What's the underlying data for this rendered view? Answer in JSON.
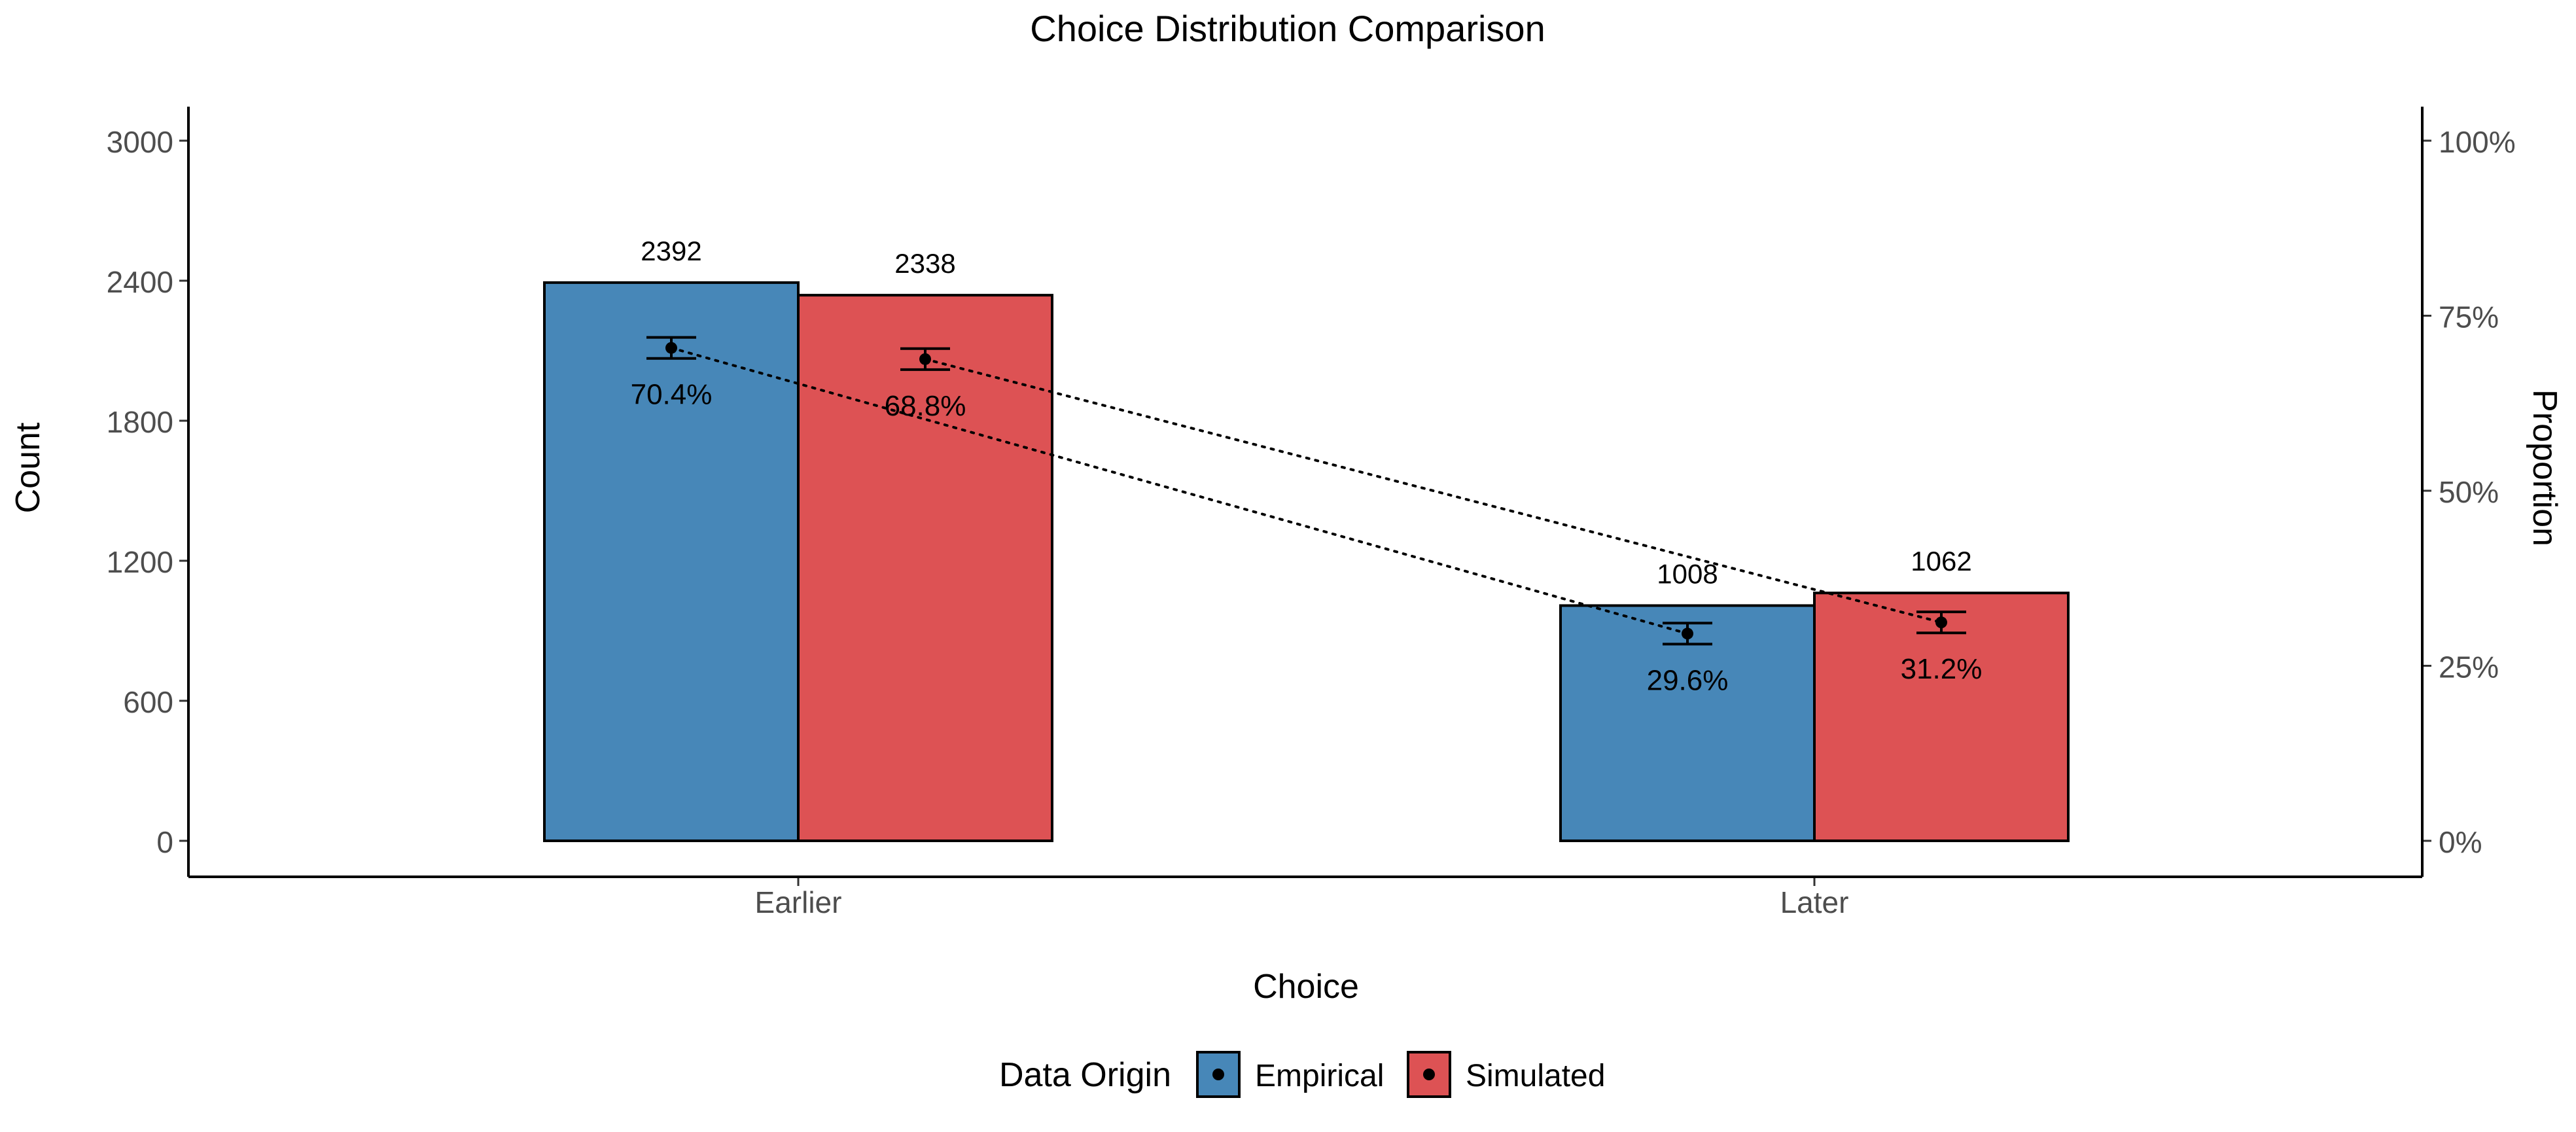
{
  "chart_data": {
    "type": "bar",
    "title": "Choice Distribution Comparison",
    "xlabel": "Choice",
    "ylabel": "Count",
    "y2label": "Proportion",
    "categories": [
      "Earlier",
      "Later"
    ],
    "ylim": [
      0,
      3000
    ],
    "yticks": [
      0,
      600,
      1200,
      1800,
      2400,
      3000
    ],
    "y2lim": [
      0,
      1
    ],
    "y2ticks": [
      "0%",
      "25%",
      "50%",
      "75%",
      "100%"
    ],
    "series": [
      {
        "name": "Empirical",
        "color": "#4787B8",
        "values": [
          2392,
          1008
        ],
        "value_labels": [
          "2392",
          "1008"
        ],
        "proportions": [
          0.704,
          0.296
        ],
        "proportion_labels": [
          "70.4%",
          "29.6%"
        ],
        "proportion_error": [
          0.015,
          0.015
        ]
      },
      {
        "name": "Simulated",
        "color": "#DD5254",
        "values": [
          2338,
          1062
        ],
        "value_labels": [
          "2338",
          "1062"
        ],
        "proportions": [
          0.688,
          0.312
        ],
        "proportion_labels": [
          "68.8%",
          "31.2%"
        ],
        "proportion_error": [
          0.015,
          0.015
        ]
      }
    ],
    "legend": {
      "title": "Data Origin",
      "position": "bottom"
    },
    "grid": false
  }
}
